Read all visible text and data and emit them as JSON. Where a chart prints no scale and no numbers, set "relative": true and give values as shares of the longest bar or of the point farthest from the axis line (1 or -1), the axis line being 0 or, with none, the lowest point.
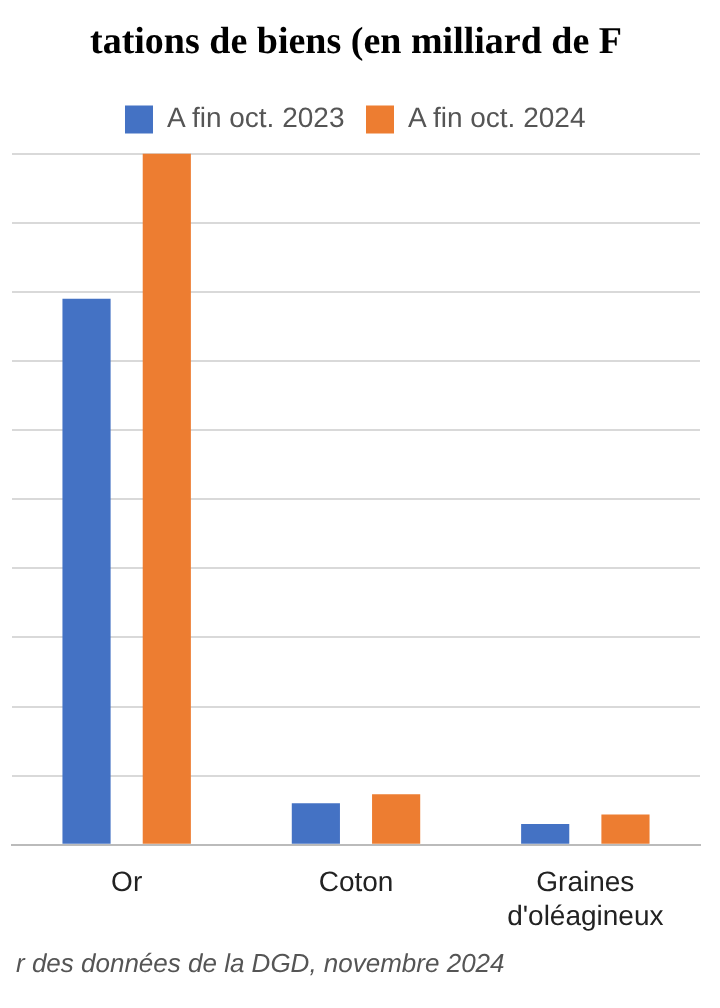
{
  "chart_data": {
    "type": "bar",
    "title": "tations de biens (en milliard de F",
    "relative": true,
    "grid": "y",
    "legend": "top",
    "categories": [
      "Or",
      "Coton",
      "Graines d'oléagineux"
    ],
    "series": [
      {
        "name": "A fin oct. 2023",
        "color": "#4472c4",
        "values": [
          0.79,
          0.06,
          0.03
        ]
      },
      {
        "name": "A fin oct. 2024",
        "color": "#ed7d31",
        "values": [
          1,
          0.073,
          0.044
        ]
      }
    ],
    "annotations": [
      "r des données de la DGD, novembre 2024"
    ]
  }
}
